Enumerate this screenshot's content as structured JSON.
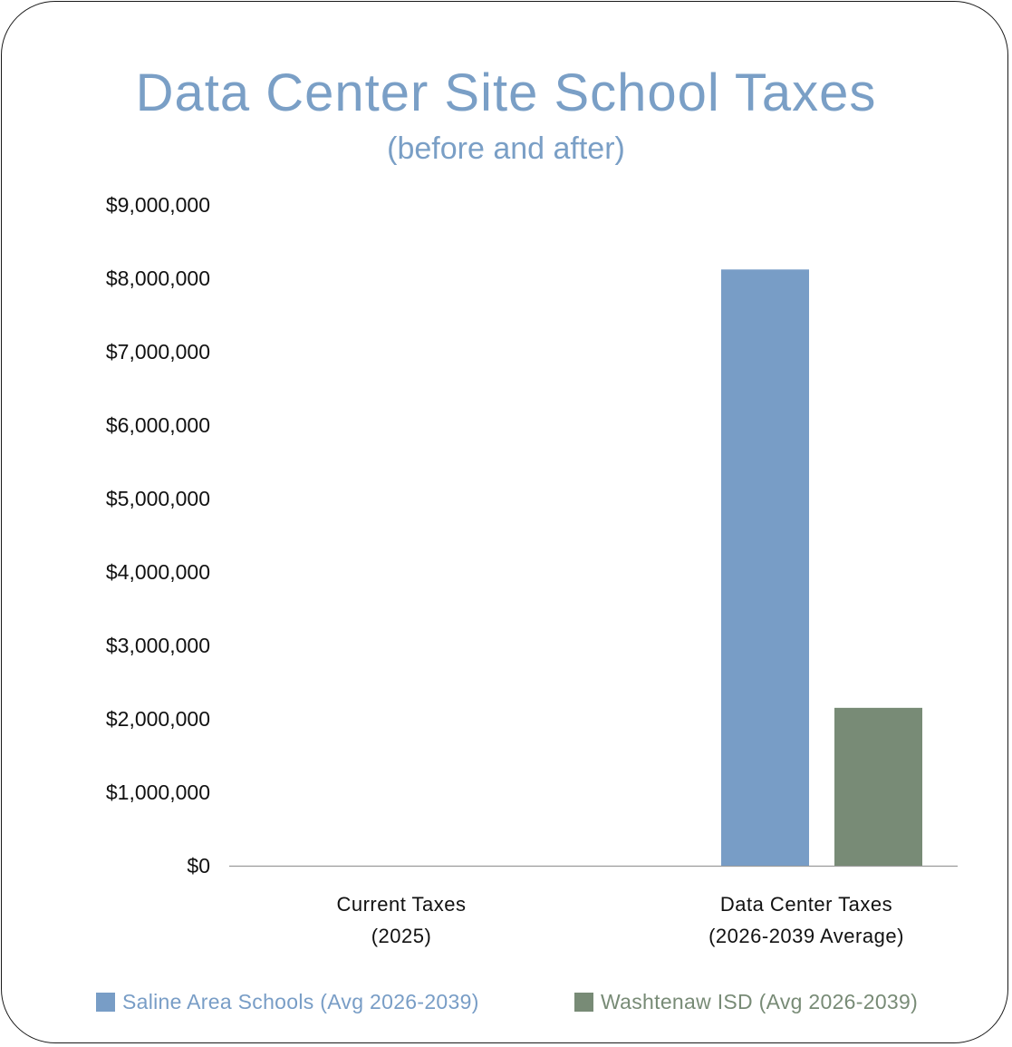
{
  "chart_data": {
    "type": "bar",
    "title": "Data Center Site School Taxes",
    "subtitle": "(before and after)",
    "categories": [
      {
        "line1": "Current Taxes",
        "line2": "(2025)"
      },
      {
        "line1": "Data Center Taxes",
        "line2": "(2026-2039 Average)"
      }
    ],
    "series": [
      {
        "name": "Saline Area Schools (Avg 2026-2039)",
        "color": "#789dc6",
        "values": [
          0,
          8120000
        ]
      },
      {
        "name": "Washtenaw ISD (Avg 2026-2039)",
        "color": "#788b76",
        "values": [
          0,
          2150000
        ]
      }
    ],
    "ylim": [
      0,
      9000000
    ],
    "yticks": [
      {
        "value": 0,
        "label": "$0"
      },
      {
        "value": 1000000,
        "label": "$1,000,000"
      },
      {
        "value": 2000000,
        "label": "$2,000,000"
      },
      {
        "value": 3000000,
        "label": "$3,000,000"
      },
      {
        "value": 4000000,
        "label": "$4,000,000"
      },
      {
        "value": 5000000,
        "label": "$5,000,000"
      },
      {
        "value": 6000000,
        "label": "$6,000,000"
      },
      {
        "value": 7000000,
        "label": "$7,000,000"
      },
      {
        "value": 8000000,
        "label": "$8,000,000"
      },
      {
        "value": 9000000,
        "label": "$9,000,000"
      }
    ],
    "xlabel": "",
    "ylabel": "",
    "grid": false,
    "legend_position": "bottom"
  }
}
